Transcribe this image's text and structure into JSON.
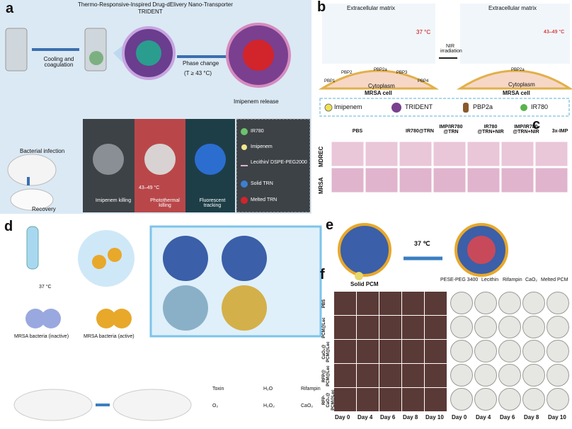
{
  "panel_a": {
    "label": "a",
    "title": "Thermo-Responsive-Inspired Drug-dElivery Nano-Transporter",
    "name": "TRIDENT",
    "steps": [
      "Cooling and coagulation",
      "Phase change",
      "(T ≥ 43 °C)",
      "Imipenem release",
      "Bacterial infection",
      "Recovery"
    ],
    "modes": [
      "Imipenem killing",
      "Photothermal killing",
      "Fluorescent tracking"
    ],
    "temperature": "43–49 °C",
    "legend": [
      "IR780",
      "Imipenem",
      "Lecithin/ DSPE-PEG2000",
      "Solid TRN",
      "Melted TRN"
    ]
  },
  "panel_b": {
    "label": "b",
    "left": {
      "matrix": "Extracellular matrix",
      "temperature": "37 °C",
      "proteins": [
        "PBP1",
        "PBP2",
        "PBP2a",
        "PBP3",
        "PBP4"
      ],
      "cytoplasm": "Cytoplasm",
      "cell": "MRSA cell"
    },
    "arrow": "NIR irradiation",
    "right": {
      "matrix": "Extracellular matrix",
      "temperature": "43–49 °C",
      "protein": "PBP2a",
      "cytoplasm": "Cytoplasm",
      "cell": "MRSA cell"
    },
    "legend": [
      "Imipenem",
      "TRIDENT",
      "PBP2a",
      "IR780"
    ]
  },
  "panel_c": {
    "label": "c",
    "columns": [
      "PBS",
      "IR780@TRN",
      "IMP/IR780 @TRN",
      "IR780 @TRN+NIR",
      "IMP/IR780 @TRN+NIR",
      "3x-IMP"
    ],
    "rows": [
      "MDREC",
      "MRSA"
    ]
  },
  "panel_d": {
    "label": "d",
    "temperature": "37 °C",
    "bacteria": [
      "MRSA bacteria (inactive)",
      "MRSA bacteria (active)"
    ],
    "legend": [
      "Toxin",
      "H₂O",
      "Rifampin",
      "O₂",
      "H₂O₂",
      "CaO₂"
    ]
  },
  "panel_e": {
    "label": "e",
    "temperature": "37 ℃"
  },
  "panel_f": {
    "label": "f",
    "legend": [
      "Solid PCM",
      "PESE-PEG 3400",
      "Lecithin",
      "Rifampin",
      "CaO₂",
      "Melted PCM"
    ],
    "rows": [
      "PBS",
      "PCM@Lec",
      "CaO₂@ PCM@Lec",
      "RFP@ PCM@Lec",
      "RFP-CaO₂@ PCM@Lec"
    ],
    "days": [
      "Day 0",
      "Day 4",
      "Day 6",
      "Day 8",
      "Day 10"
    ]
  }
}
